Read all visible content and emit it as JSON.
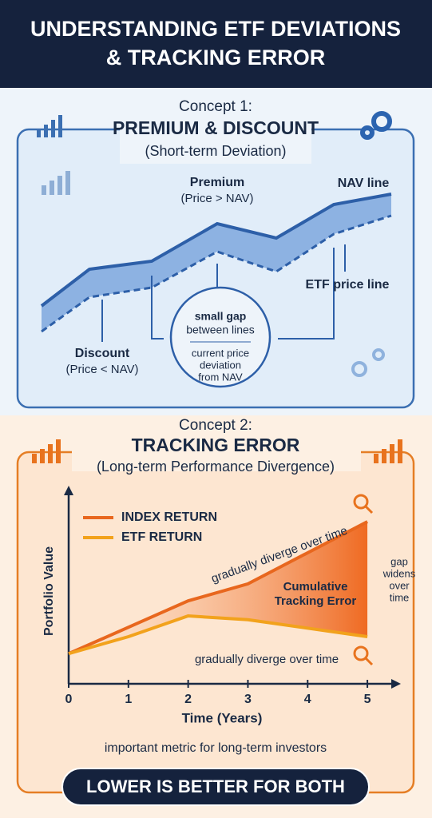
{
  "header": {
    "title_line1": "UNDERSTANDING ETF DEVIATIONS",
    "title_line2": "& TRACKING ERROR"
  },
  "concept1": {
    "label": "Concept 1:",
    "title": "PREMIUM & DISCOUNT",
    "subtitle": "(Short-term Deviation)",
    "premium": "Premium",
    "premium_note": "(Price > NAV)",
    "nav_line": "NAV line",
    "etf_line": "ETF price line",
    "discount": "Discount",
    "discount_note": "(Price < NAV)",
    "circle": [
      "small gap",
      "between lines",
      "current price",
      "deviation",
      "from NAV"
    ]
  },
  "concept2": {
    "label": "Concept 2:",
    "title": "TRACKING ERROR",
    "subtitle": "(Long-term Performance Divergence)",
    "chart": {
      "type": "line",
      "y_label": "Portfolio Value",
      "x_label": "Time (Years)",
      "xlim": [
        0,
        5.4
      ],
      "xticks": [
        0,
        1,
        2,
        3,
        4,
        5
      ],
      "ylim": [
        0,
        10
      ],
      "series": [
        {
          "name": "INDEX RETURN",
          "color": "#e8671e",
          "x": [
            0,
            2,
            3,
            5
          ],
          "values": [
            1.6,
            4.4,
            5.3,
            8.6
          ]
        },
        {
          "name": "ETF RETURN",
          "color": "#f2a21c",
          "x": [
            0,
            1,
            2,
            3,
            5
          ],
          "values": [
            1.6,
            2.5,
            3.6,
            3.4,
            2.5
          ]
        }
      ]
    },
    "diverge_top": "gradually diverge over time",
    "diverge_bottom": "gradually diverge over time",
    "cumulative": [
      "Cumulative",
      "Tracking Error"
    ],
    "gap": [
      "gap",
      "widens",
      "over",
      "time"
    ],
    "note": "important metric for long-term investors"
  },
  "footer": {
    "button": "LOWER IS BETTER FOR BOTH"
  }
}
